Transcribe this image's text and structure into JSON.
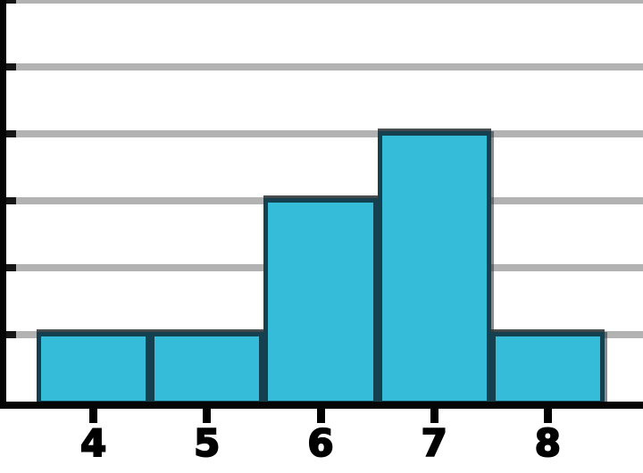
{
  "chart_data": {
    "type": "bar",
    "subtype": "histogram",
    "title": "",
    "xlabel": "",
    "ylabel": "",
    "categories": [
      "4",
      "5",
      "6",
      "7",
      "8"
    ],
    "values": [
      1,
      1,
      3,
      4,
      1
    ],
    "ylim": [
      0,
      6
    ],
    "gridline_step": 1,
    "grid": true,
    "legend": false,
    "y_tick_labels_visible": false,
    "colors": {
      "bar_fill": "#35bcd9",
      "bar_border": "#14404f",
      "gridline": "#b2b2b2",
      "axis": "#050505",
      "tick": "#000000",
      "label": "#000000",
      "background": "#ffffff"
    }
  }
}
